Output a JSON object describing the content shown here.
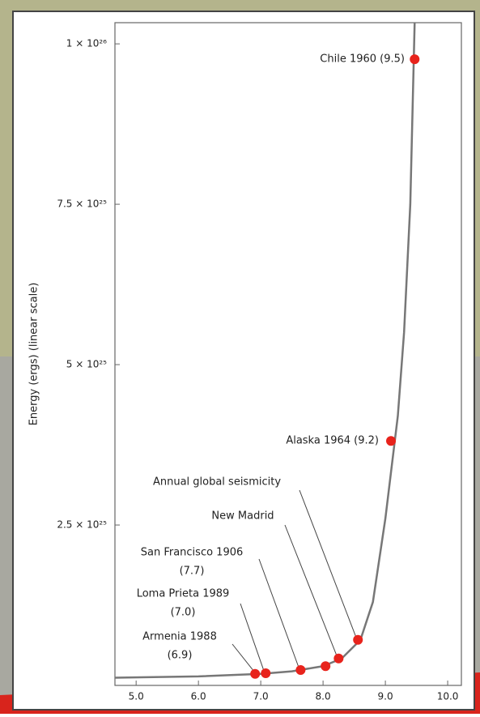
{
  "chart_data": {
    "type": "scatter",
    "y_label": "Energy (ergs) (linear scale)",
    "xlim": [
      4.66,
      10.22
    ],
    "ylim": [
      0,
      1.033e+26
    ],
    "xticks": [
      {
        "value": 5,
        "label": "5.0"
      },
      {
        "value": 6,
        "label": "6.0"
      },
      {
        "value": 7,
        "label": "7.0"
      },
      {
        "value": 8,
        "label": "8.0"
      },
      {
        "value": 9,
        "label": "9.0"
      },
      {
        "value": 10,
        "label": "10.0"
      }
    ],
    "yticks": [
      {
        "value": 2.5e+25,
        "label": "2.5 × 10²⁵"
      },
      {
        "value": 5e+25,
        "label": "5 × 10²⁵"
      },
      {
        "value": 7.5e+25,
        "label": "7.5 × 10²⁵"
      },
      {
        "value": 1e+26,
        "label": "1 × 10²⁶"
      }
    ],
    "curve": {
      "color": "#777777",
      "x": [
        4.66,
        6.0,
        7.0,
        7.5,
        8.0,
        8.3,
        8.6,
        8.8,
        9.0,
        9.2,
        9.3,
        9.4,
        9.47
      ],
      "values": [
        1.2e+24,
        1.4e+24,
        1.8e+24,
        2.2e+24,
        3e+24,
        4.2e+24,
        7.1e+24,
        1.3e+25,
        2.6e+25,
        4.2e+25,
        5.5e+25,
        7.5e+25,
        1.033e+26
      ]
    },
    "points": {
      "color": "#e8231c",
      "x": [
        6.91,
        7.08,
        7.64,
        8.04,
        8.25,
        8.56,
        9.09,
        9.47
      ],
      "values": [
        1.8e+24,
        1.9e+24,
        2.4e+24,
        3e+24,
        4.2e+24,
        7.1e+24,
        3.81e+25,
        9.76e+25
      ],
      "labels": [
        [
          "Armenia 1988",
          "(6.9)"
        ],
        [
          "Loma Prieta 1989",
          "(7.0)"
        ],
        [
          "San Francisco 1906",
          "(7.7)"
        ],
        null,
        [
          "New Madrid"
        ],
        [
          "Annual global seismicity"
        ],
        [
          "Alaska 1964 (9.2)"
        ],
        [
          "Chile 1960 (9.5)"
        ]
      ]
    }
  }
}
